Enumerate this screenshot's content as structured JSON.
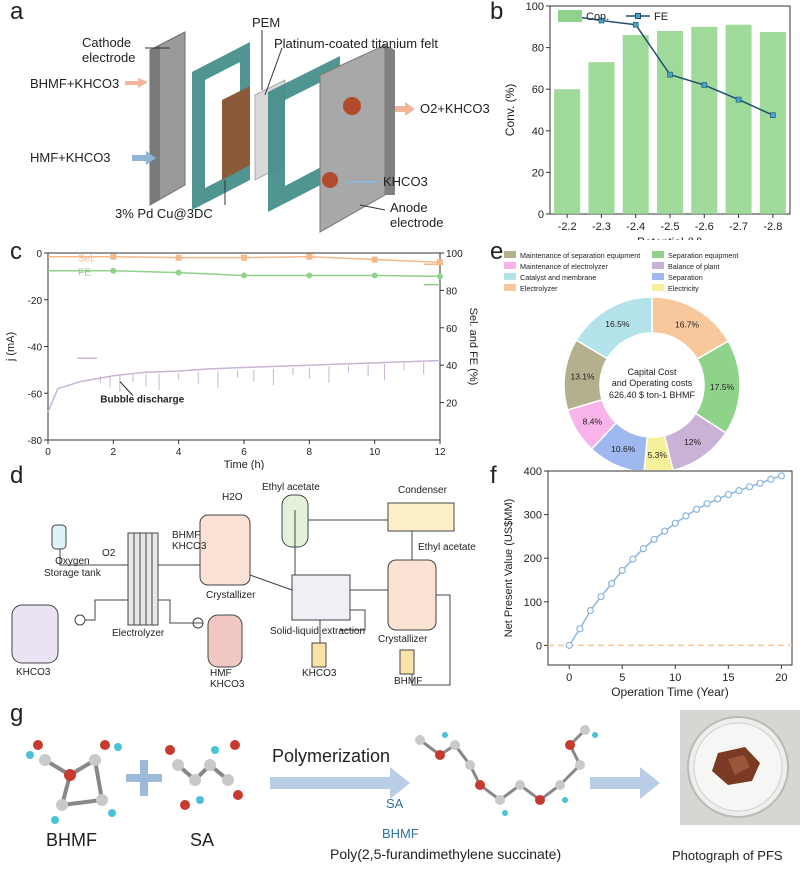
{
  "panels": {
    "a": "a",
    "b": "b",
    "c": "c",
    "d": "d",
    "e": "e",
    "f": "f",
    "g": "g"
  },
  "panel_a": {
    "labels": {
      "cathode": "Cathode electrode",
      "pem": "PEM",
      "pt_felt": "Platinum-coated titanium felt",
      "bhmf_out": "BHMF+KHCO3",
      "o2_out": "O2+KHCO3",
      "hmf_in": "HMF+KHCO3",
      "khco3_in": "KHCO3",
      "catalyst": "3% Pd Cu@3DC",
      "anode": "Anode electrode"
    },
    "colors": {
      "plate": "#8c8c8c",
      "frame": "#3d8a86",
      "arrow_out": "#f2b49a",
      "arrow_in": "#8fb4d6"
    }
  },
  "chart_data": [
    {
      "id": "b",
      "type": "bar",
      "categories": [
        "-2.2",
        "-2.3",
        "-2.4",
        "-2.5",
        "-2.6",
        "-2.7",
        "-2.8"
      ],
      "series": [
        {
          "name": "Con.",
          "kind": "bar",
          "values": [
            60,
            73,
            86,
            88,
            90,
            91,
            87.5
          ]
        },
        {
          "name": "FE",
          "kind": "line",
          "values": [
            95.5,
            93,
            91,
            67,
            62,
            55,
            47.5
          ]
        }
      ],
      "xlabel": "Potential (V)",
      "ylabel": "Conv. (%)",
      "ylim": [
        0,
        100
      ],
      "yticks": [
        "0",
        "20",
        "40",
        "60",
        "80",
        "100"
      ],
      "legend": [
        "Con.",
        "FE"
      ],
      "colors": {
        "bar": "#8fd38a",
        "line": "#1f4e6e",
        "marker": "#4aa3c6"
      }
    },
    {
      "id": "c",
      "type": "line",
      "xlabel": "Time (h)",
      "ylabel_left": "j (mA)",
      "ylabel_right": "Sel. and FE (%)",
      "xlim": [
        0,
        12
      ],
      "xticks": [
        "0",
        "2",
        "4",
        "6",
        "8",
        "10",
        "12"
      ],
      "ylim_left": [
        -80,
        0
      ],
      "yticks_left": [
        "-80",
        "-60",
        "-40",
        "-20",
        "0"
      ],
      "ylim_right": [
        0,
        100
      ],
      "yticks_right": [
        "20",
        "40",
        "60",
        "80",
        "100"
      ],
      "series": [
        {
          "name": "Sel.",
          "axis": "right",
          "x": [
            2,
            4,
            6,
            8,
            10,
            12
          ],
          "y": [
            98,
            97.5,
            97.5,
            98,
            96.5,
            95
          ]
        },
        {
          "name": "FE",
          "axis": "right",
          "x": [
            2,
            4,
            6,
            8,
            10,
            12
          ],
          "y": [
            90.5,
            89.5,
            88,
            88,
            88,
            87.5
          ]
        },
        {
          "name": "j",
          "axis": "left",
          "x": [
            0,
            0.3,
            1,
            2,
            3,
            4,
            5,
            6,
            7,
            8,
            9,
            10,
            11,
            12
          ],
          "y": [
            -68,
            -58,
            -55,
            -52.5,
            -51,
            -50.5,
            -49.5,
            -49,
            -48.5,
            -48,
            -47.5,
            -47,
            -46.5,
            -46
          ]
        }
      ],
      "annotation": "Bubble discharge",
      "legend": [
        "Sel.",
        "FE"
      ],
      "colors": {
        "sel": "#f5b889",
        "fe": "#8fd38a",
        "j": "#c8b4d8"
      }
    },
    {
      "id": "e",
      "type": "pie",
      "title": "Capital Cost and Operating costs",
      "total_label": "626.40 $ ton-1 BHMF",
      "labels": [
        "Electrolyzer",
        "Separation equipment",
        "Balance of plant",
        "Electricity",
        "Separation",
        "Maintenance of electrolyzer",
        "Maintenance of separation equipment",
        "Catalyst and membrane"
      ],
      "values": [
        16.7,
        17.5,
        12,
        5.3,
        10.6,
        8.4,
        13.1,
        16.5
      ],
      "value_labels": [
        "16.7%",
        "17.5%",
        "12%",
        "5.3%",
        "10.6%",
        "8.4%",
        "13.1%",
        "16.5%"
      ],
      "colors": [
        "#f8c79c",
        "#8fd38a",
        "#c9b2d6",
        "#f7f09a",
        "#9fb8ef",
        "#f7b3ea",
        "#b4b08e",
        "#b3e2ea"
      ],
      "legend": [
        "Maintenance of separation equipment",
        "Separation equipment",
        "Maintenance of electrolyzer",
        "Balance of plant",
        "Catalyst and membrane",
        "Separation",
        "Electrolyzer",
        "Electricity"
      ]
    },
    {
      "id": "f",
      "type": "line",
      "x": [
        0,
        1,
        2,
        3,
        4,
        5,
        6,
        7,
        8,
        9,
        10,
        11,
        12,
        13,
        14,
        15,
        16,
        17,
        18,
        19,
        20
      ],
      "y": [
        0,
        38,
        80,
        112,
        142,
        172,
        198,
        222,
        243,
        262,
        280,
        297,
        312,
        325,
        336,
        346,
        355,
        364,
        372,
        381,
        389
      ],
      "xlabel": "Operation Time (Year)",
      "ylabel": "Net Present Value (US$MM)",
      "xlim": [
        -2,
        21
      ],
      "xticks": [
        "0",
        "5",
        "10",
        "15",
        "20"
      ],
      "ylim": [
        -45,
        400
      ],
      "yticks": [
        "0",
        "100",
        "200",
        "300",
        "400"
      ],
      "colors": {
        "line": "#8bb6e0",
        "zero": "#f3c79a"
      }
    }
  ],
  "panel_d": {
    "labels": {
      "oxygen_tank": "Oxygen\nStorage tank",
      "o2": "O2",
      "bhmf_khco3": "BHMF\nKHCO3",
      "h2o": "H2O",
      "ethyl_acetate_top": "Ethyl acetate",
      "condenser": "Condenser",
      "ethyl_acetate_right": "Ethyl acetate",
      "crystallizer_1": "Crystallizer",
      "crystallizer_2": "Crystallizer",
      "electrolyzer": "Electrolyzer",
      "solid_liquid": "Solid-liquid extraction",
      "khco3_left": "KHCO3",
      "hmf_khco3": "HMF\nKHCO3",
      "khco3_bottom": "KHCO3",
      "bhmf_bottom": "BHMF"
    }
  },
  "panel_g": {
    "labels": {
      "bhmf": "BHMF",
      "sa": "SA",
      "polymerization": "Polymerization",
      "sa_chain": "SA",
      "bhmf_chain": "BHMF",
      "polymer": "Poly(2,5-furandimethylene succinate)",
      "photo": "Photograph of PFS"
    }
  }
}
